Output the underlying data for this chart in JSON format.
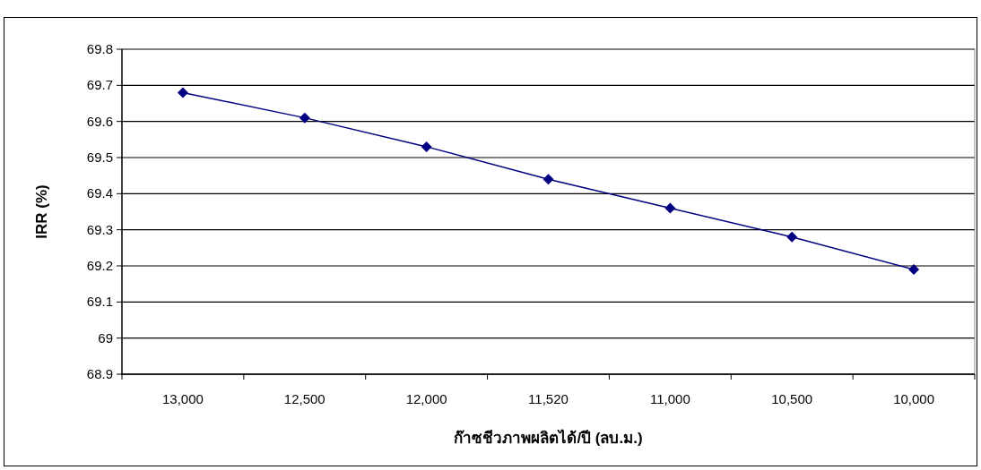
{
  "chart_data": {
    "type": "line",
    "xlabel": "ก๊าซชีวภาพผลิตได้/ปี (ลบ.ม.)",
    "ylabel": "IRR (%)",
    "categories": [
      "13,000",
      "12,500",
      "12,000",
      "11,520",
      "11,000",
      "10,500",
      "10,000"
    ],
    "series": [
      {
        "color": "#000080",
        "values": [
          69.68,
          69.61,
          69.53,
          69.44,
          69.36,
          69.28,
          69.19
        ]
      }
    ],
    "ylim": [
      68.9,
      69.8
    ],
    "yticks": [
      68.9,
      69,
      69.1,
      69.2,
      69.3,
      69.4,
      69.5,
      69.6,
      69.7,
      69.8
    ],
    "grid": "y",
    "marker": "diamond",
    "line_style": "solid"
  }
}
